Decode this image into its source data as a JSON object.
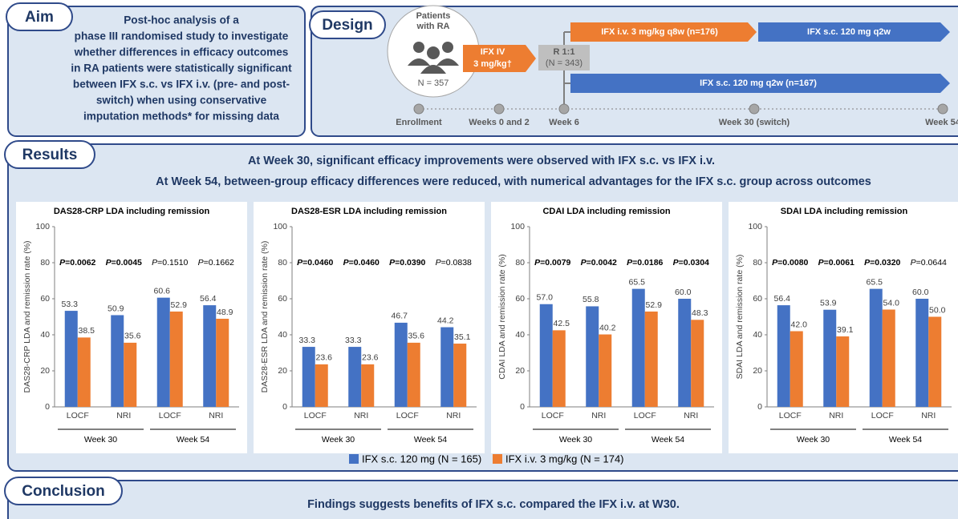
{
  "aim": {
    "label": "Aim",
    "lines": [
      "Post-hoc analysis of a",
      "phase III randomised study to investigate",
      "whether differences in efficacy outcomes",
      "in RA patients were statistically significant",
      "between IFX s.c. vs IFX i.v. (pre- and post-",
      "switch) when using conservative",
      "imputation methods* for missing data"
    ]
  },
  "design": {
    "label": "Design",
    "patients": {
      "lines": [
        "Patients",
        "with RA"
      ],
      "n": "N = 357"
    },
    "induction": {
      "lines": [
        "IFX IV",
        "3 mg/kg†"
      ]
    },
    "randomisation": {
      "lines": [
        "R 1:1",
        "(N = 343)"
      ]
    },
    "arms": [
      "IFX i.v. 3 mg/kg q8w (n=176)",
      "IFX s.c. 120 mg q2w",
      "IFX s.c. 120 mg q2w (n=167)"
    ],
    "timeline": [
      "Enrollment",
      "Weeks 0 and 2",
      "Week 6",
      "Week 30 (switch)",
      "Week 54"
    ]
  },
  "results": {
    "label": "Results",
    "headlines": [
      "At Week 30, significant efficacy improvements were observed with IFX s.c. vs IFX i.v.",
      "At Week 54, between-group efficacy differences were reduced, with numerical advantages for the IFX s.c. group across outcomes"
    ]
  },
  "chart_data": [
    {
      "type": "bar",
      "title": "DAS28-CRP LDA including remission",
      "y_label": "DAS28-CRP LDA and remission rate (%)",
      "categories": [
        "LOCF",
        "NRI",
        "LOCF",
        "NRI"
      ],
      "groups": [
        "Week 30",
        "Week 54"
      ],
      "series": [
        {
          "values": [
            53.3,
            50.9,
            60.6,
            56.4
          ],
          "value_labels": [
            "53.3",
            "50.9",
            "60.6",
            "56.4"
          ]
        },
        {
          "values": [
            38.5,
            35.6,
            52.9,
            48.9
          ],
          "value_labels": [
            "38.5",
            "35.6",
            "52.9",
            "48.9"
          ]
        }
      ],
      "p_values": [
        "P=0.0062",
        "P=0.0045",
        "P=0.1510",
        "P=0.1662"
      ],
      "significant": [
        true,
        true,
        false,
        false
      ],
      "ylim": [
        0,
        100
      ],
      "yticks": [
        0,
        20,
        40,
        60,
        80,
        100
      ]
    },
    {
      "type": "bar",
      "title": "DAS28-ESR LDA including remission",
      "y_label": "DAS28-ESR LDA and remission rate (%)",
      "categories": [
        "LOCF",
        "NRI",
        "LOCF",
        "NRI"
      ],
      "groups": [
        "Week 30",
        "Week 54"
      ],
      "series": [
        {
          "values": [
            33.3,
            33.3,
            46.7,
            44.2
          ],
          "value_labels": [
            "33.3",
            "33.3",
            "46.7",
            "44.2"
          ]
        },
        {
          "values": [
            23.6,
            23.6,
            35.6,
            35.1
          ],
          "value_labels": [
            "23.6",
            "23.6",
            "35.6",
            "35.1"
          ]
        }
      ],
      "p_values": [
        "P=0.0460",
        "P=0.0460",
        "P=0.0390",
        "P=0.0838"
      ],
      "significant": [
        true,
        true,
        true,
        false
      ],
      "ylim": [
        0,
        100
      ],
      "yticks": [
        0,
        20,
        40,
        60,
        80,
        100
      ]
    },
    {
      "type": "bar",
      "title": "CDAI LDA including remission",
      "y_label": "CDAI LDA and remission rate (%)",
      "categories": [
        "LOCF",
        "NRI",
        "LOCF",
        "NRI"
      ],
      "groups": [
        "Week 30",
        "Week 54"
      ],
      "series": [
        {
          "values": [
            57.0,
            55.8,
            65.5,
            60.0
          ],
          "value_labels": [
            "57.0",
            "55.8",
            "65.5",
            "60.0"
          ]
        },
        {
          "values": [
            42.5,
            40.2,
            52.9,
            48.3
          ],
          "value_labels": [
            "42.5",
            "40.2",
            "52.9",
            "48.3"
          ]
        }
      ],
      "p_values": [
        "P=0.0079",
        "P=0.0042",
        "P=0.0186",
        "P=0.0304"
      ],
      "significant": [
        true,
        true,
        true,
        true
      ],
      "ylim": [
        0,
        100
      ],
      "yticks": [
        0,
        20,
        40,
        60,
        80,
        100
      ]
    },
    {
      "type": "bar",
      "title": "SDAI LDA including remission",
      "y_label": "SDAI LDA and remission rate (%)",
      "categories": [
        "LOCF",
        "NRI",
        "LOCF",
        "NRI"
      ],
      "groups": [
        "Week 30",
        "Week 54"
      ],
      "series": [
        {
          "values": [
            56.4,
            53.9,
            65.5,
            60.0
          ],
          "value_labels": [
            "56.4",
            "53.9",
            "65.5",
            "60.0"
          ]
        },
        {
          "values": [
            42.0,
            39.1,
            54.0,
            50.0
          ],
          "value_labels": [
            "42.0",
            "39.1",
            "54.0",
            "50.0"
          ]
        }
      ],
      "p_values": [
        "P=0.0080",
        "P=0.0061",
        "P=0.0320",
        "P=0.0644"
      ],
      "significant": [
        true,
        true,
        true,
        false
      ],
      "ylim": [
        0,
        100
      ],
      "yticks": [
        0,
        20,
        40,
        60,
        80,
        100
      ]
    }
  ],
  "legend": [
    {
      "name": "IFX s.c. 120 mg (N = 165)",
      "color": "#4472c4"
    },
    {
      "name": "IFX i.v. 3 mg/kg (N = 174)",
      "color": "#ed7d31"
    }
  ],
  "conclusion": {
    "label": "Conclusion",
    "text": "Findings suggests benefits of IFX s.c. compared the IFX i.v. at W30."
  }
}
